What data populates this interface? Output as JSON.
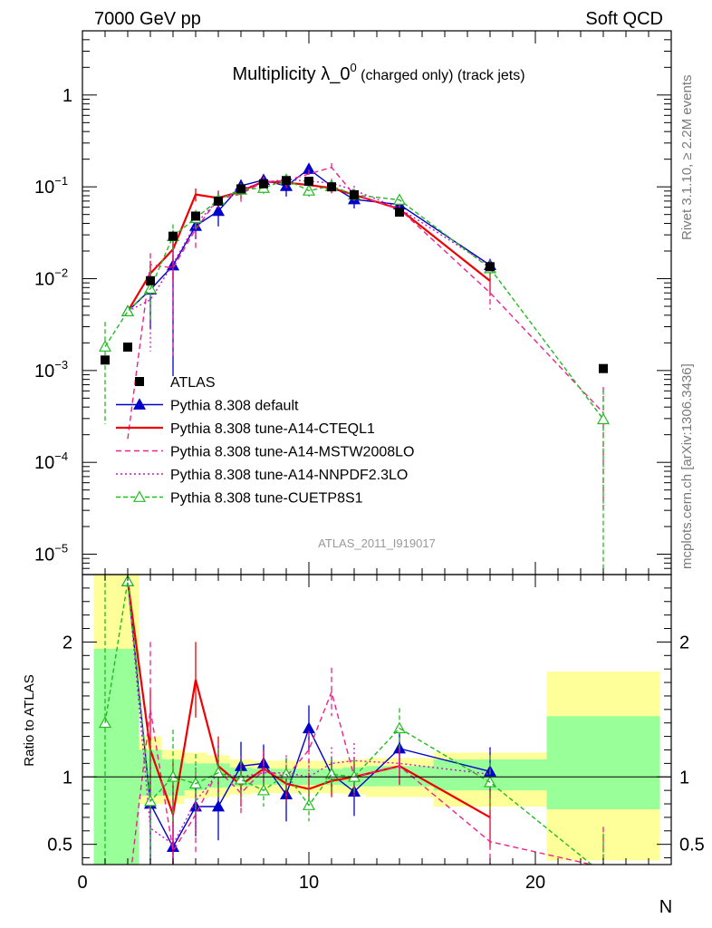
{
  "header": {
    "left": "7000 GeV pp",
    "right": "Soft QCD"
  },
  "side_labels": {
    "rivet": "Rivet 3.1.10, ≥ 2.2M events",
    "mcplots": "mcplots.cern.ch [arXiv:1306.3436]"
  },
  "chart_data": {
    "type": "scatter",
    "title": {
      "main": "Multiplicity λ_0",
      "sup": "0",
      "tail": " (charged only) (track jets)"
    },
    "analysis_id": "ATLAS_2011_I919017",
    "xlabel": "N",
    "ylabel_ratio": "Ratio to ATLAS",
    "xlim": [
      0,
      26
    ],
    "x_ticks": [
      "0",
      "10",
      "20"
    ],
    "y_main_scale": "log",
    "y_main_range": [
      6e-06,
      5
    ],
    "y_main_ticks": [
      {
        "base": "1",
        "exp": ""
      },
      {
        "base": "10",
        "exp": "−1"
      },
      {
        "base": "10",
        "exp": "−2"
      },
      {
        "base": "10",
        "exp": "−3"
      },
      {
        "base": "10",
        "exp": "−4"
      },
      {
        "base": "10",
        "exp": "−5"
      }
    ],
    "y_ratio_range": [
      0.35,
      2.5
    ],
    "y_ratio_ticks": [
      "2",
      "1",
      "0.5"
    ],
    "legend_position": "middle-left",
    "legend": [
      "ATLAS",
      "Pythia 8.308 default",
      "Pythia 8.308 tune-A14-CTEQL1",
      "Pythia 8.308 tune-A14-MSTW2008LO",
      "Pythia 8.308 tune-A14-NNPDF2.3LO",
      "Pythia 8.308 tune-CUETP8S1"
    ],
    "x": [
      1,
      2,
      3,
      4,
      5,
      6,
      7,
      8,
      9,
      10,
      11,
      12,
      14,
      18,
      23
    ],
    "data_bins": [
      [
        0.5,
        1.5
      ],
      [
        1.5,
        2.5
      ],
      [
        2.5,
        3.5
      ],
      [
        3.5,
        4.5
      ],
      [
        4.5,
        5.5
      ],
      [
        5.5,
        6.5
      ],
      [
        6.5,
        7.5
      ],
      [
        7.5,
        8.5
      ],
      [
        8.5,
        9.5
      ],
      [
        9.5,
        10.5
      ],
      [
        10.5,
        11.5
      ],
      [
        11.5,
        12.5
      ],
      [
        12.5,
        15.5
      ],
      [
        15.5,
        20.5
      ],
      [
        20.5,
        25.5
      ]
    ],
    "data_values": [
      0.0013,
      0.0018,
      0.0095,
      0.029,
      0.048,
      0.07,
      0.095,
      0.108,
      0.117,
      0.115,
      0.1,
      0.082,
      0.053,
      0.0135,
      0.00105
    ],
    "band_inner": [
      [
        0.05,
        1.95
      ],
      [
        0.05,
        1.95
      ],
      [
        0.86,
        1.2
      ],
      [
        0.86,
        1.13
      ],
      [
        0.9,
        1.1
      ],
      [
        0.92,
        1.1
      ],
      [
        0.93,
        1.07
      ],
      [
        0.94,
        1.06
      ],
      [
        0.94,
        1.06
      ],
      [
        0.94,
        1.06
      ],
      [
        0.94,
        1.06
      ],
      [
        0.93,
        1.07
      ],
      [
        0.93,
        1.08
      ],
      [
        0.9,
        1.13
      ],
      [
        0.76,
        1.45
      ]
    ],
    "band_outer": [
      [
        0.05,
        2.6
      ],
      [
        0.05,
        2.6
      ],
      [
        0.8,
        1.3
      ],
      [
        0.8,
        1.2
      ],
      [
        0.84,
        1.18
      ],
      [
        0.85,
        1.16
      ],
      [
        0.87,
        1.13
      ],
      [
        0.88,
        1.12
      ],
      [
        0.88,
        1.12
      ],
      [
        0.88,
        1.12
      ],
      [
        0.88,
        1.12
      ],
      [
        0.87,
        1.13
      ],
      [
        0.85,
        1.14
      ],
      [
        0.78,
        1.18
      ],
      [
        0.38,
        1.78
      ]
    ],
    "series": [
      {
        "name": "Pythia 8.308 default",
        "color": "#0000cc",
        "dash": "",
        "marker": "triangle-filled",
        "x": [
          2,
          3,
          4,
          5,
          6,
          7,
          8,
          9,
          10,
          11,
          12,
          14,
          18
        ],
        "ratio": [
          2.45,
          0.8,
          0.48,
          0.78,
          0.78,
          1.08,
          1.1,
          0.87,
          1.36,
          1.02,
          0.89,
          1.21,
          1.04
        ],
        "ratio_err": [
          0,
          0.5,
          0.45,
          0.22,
          0.25,
          0.18,
          0.14,
          0.2,
          0.17,
          0.12,
          0.18,
          0.15,
          0.18
        ]
      },
      {
        "name": "Pythia 8.308 tune-A14-CTEQL1",
        "color": "#ee0000",
        "dash": "",
        "marker": "none",
        "x": [
          2,
          3,
          4,
          5,
          6,
          7,
          8,
          9,
          10,
          11,
          12,
          14,
          18
        ],
        "ratio": [
          2.45,
          1.2,
          0.72,
          1.72,
          1.08,
          0.94,
          1.06,
          0.95,
          0.91,
          0.97,
          1.0,
          1.08,
          0.7
        ],
        "ratio_err": [
          0,
          0.45,
          0.4,
          0.28,
          0.22,
          0.16,
          0.14,
          0.13,
          0.12,
          0.12,
          0.14,
          0.14,
          0.22
        ]
      },
      {
        "name": "Pythia 8.308 tune-A14-MSTW2008LO",
        "color": "#ee2288",
        "dash": "6,4",
        "marker": "none",
        "x": [
          2,
          3,
          4,
          5,
          6,
          7,
          8,
          9,
          10,
          11,
          12,
          14,
          18,
          23
        ],
        "ratio": [
          0.1,
          1.5,
          0.45,
          0.72,
          1.05,
          0.88,
          1.05,
          1.0,
          1.2,
          1.63,
          1.0,
          1.08,
          0.52,
          0.33
        ],
        "ratio_err": [
          0,
          0.5,
          0.4,
          0.3,
          0.2,
          0.16,
          0.14,
          0.14,
          0.14,
          0.18,
          0.14,
          0.14,
          0.18,
          0.3
        ]
      },
      {
        "name": "Pythia 8.308 tune-A14-NNPDF2.3LO",
        "color": "#cc11cc",
        "dash": "2,3",
        "marker": "none",
        "x": [
          2,
          3,
          4,
          5,
          6,
          7,
          8,
          9,
          10,
          11,
          12,
          14,
          18
        ],
        "ratio": [
          2.45,
          0.62,
          0.5,
          0.82,
          1.03,
          1.0,
          1.03,
          1.03,
          1.0,
          1.1,
          1.12,
          1.1,
          1.02
        ],
        "ratio_err": [
          0,
          0.45,
          0.38,
          0.25,
          0.2,
          0.15,
          0.14,
          0.13,
          0.12,
          0.12,
          0.13,
          0.14,
          0.18
        ]
      },
      {
        "name": "Pythia 8.308 tune-CUETP8S1",
        "color": "#22bb22",
        "dash": "5,3",
        "marker": "triangle-open",
        "x": [
          1,
          2,
          3,
          4,
          5,
          6,
          7,
          8,
          9,
          10,
          11,
          12,
          14,
          18,
          23
        ],
        "ratio": [
          1.4,
          2.45,
          0.82,
          1.0,
          0.95,
          1.03,
          0.98,
          0.9,
          1.02,
          0.79,
          1.02,
          1.0,
          1.36,
          0.96,
          0.28
        ],
        "ratio_err": [
          1.2,
          0,
          0.45,
          0.35,
          0.22,
          0.18,
          0.14,
          0.12,
          0.12,
          0.12,
          0.12,
          0.13,
          0.15,
          0.2,
          0.3
        ]
      }
    ]
  }
}
